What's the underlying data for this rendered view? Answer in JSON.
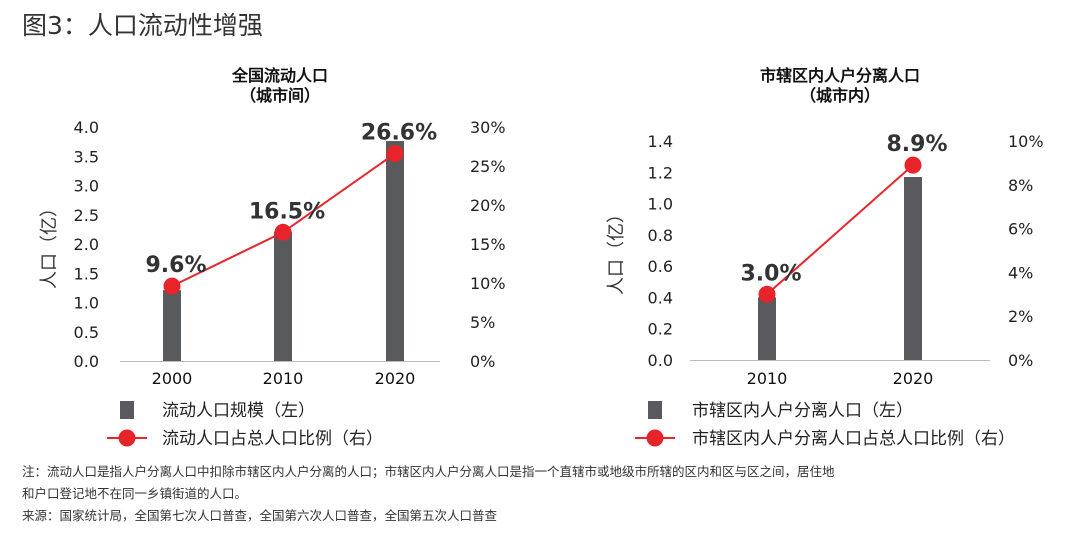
{
  "figure_title": "图3：人口流动性增强",
  "chart_data": [
    {
      "type": "bar+line",
      "title": "全国流动人口",
      "subtitle": "（城市间）",
      "categories": [
        "2000",
        "2010",
        "2020"
      ],
      "ylabel": "人口（亿）",
      "ylim": [
        0,
        4.0
      ],
      "yticks": [
        "0.0",
        "0.5",
        "1.0",
        "1.5",
        "2.0",
        "2.5",
        "3.0",
        "3.5",
        "4.0"
      ],
      "y2lim": [
        0,
        30
      ],
      "y2ticks": [
        "0%",
        "5%",
        "10%",
        "15%",
        "20%",
        "25%",
        "30%"
      ],
      "series": [
        {
          "name": "流动人口规模（左）",
          "kind": "bar",
          "axis": "left",
          "values": [
            1.21,
            2.21,
            3.76
          ]
        },
        {
          "name": "流动人口占总人口比例（右）",
          "kind": "line",
          "axis": "right",
          "values": [
            9.6,
            16.5,
            26.6
          ],
          "labels": [
            "9.6%",
            "16.5%",
            "26.6%"
          ]
        }
      ]
    },
    {
      "type": "bar+line",
      "title": "市辖区内人户分离人口",
      "subtitle": "（城市内）",
      "categories": [
        "2010",
        "2020"
      ],
      "ylabel": "人口（亿）",
      "ylim": [
        0,
        1.4
      ],
      "yticks": [
        "0.0",
        "0.2",
        "0.4",
        "0.6",
        "0.8",
        "1.0",
        "1.2",
        "1.4"
      ],
      "y2lim": [
        0,
        10
      ],
      "y2ticks": [
        "0%",
        "2%",
        "4%",
        "6%",
        "8%",
        "10%"
      ],
      "series": [
        {
          "name": "市辖区内人户分离人口（左）",
          "kind": "bar",
          "axis": "left",
          "values": [
            0.4,
            1.17
          ]
        },
        {
          "name": "市辖区内人户分离人口占总人口比例（右）",
          "kind": "line",
          "axis": "right",
          "values": [
            3.0,
            8.9
          ],
          "labels": [
            "3.0%",
            "8.9%"
          ]
        }
      ]
    }
  ],
  "colors": {
    "bar": "#595a5e",
    "line": "#e8242b",
    "axis": "#bbbbbb"
  },
  "notes": {
    "line1": "注：流动人口是指人户分离人口中扣除市辖区内人户分离的人口；市辖区内人户分离人口是指一个直辖市或地级市所辖的区内和区与区之间，居住地",
    "line2": "和户口登记地不在同一乡镇街道的人口。",
    "source": "来源：国家统计局，全国第七次人口普查，全国第六次人口普查，全国第五次人口普查"
  }
}
